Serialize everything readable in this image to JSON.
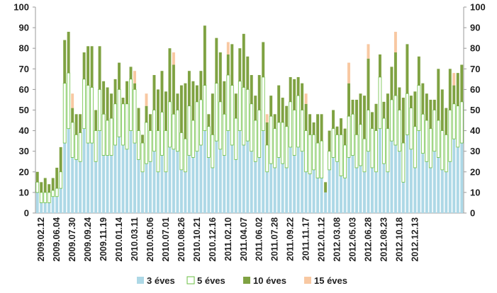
{
  "chart_data": {
    "type": "bar",
    "stacked": true,
    "ylim": [
      0,
      100
    ],
    "y_ticks": [
      0,
      10,
      20,
      30,
      40,
      50,
      60,
      70,
      80,
      90,
      100
    ],
    "grid": false,
    "legend_position": "bottom",
    "x_tick_labels": [
      "2009.02.12",
      "2009.06.04",
      "2009.07.30",
      "2009.09.24",
      "2009.11.19",
      "2010.01.14",
      "2010.03.11",
      "2010.05.06",
      "2010.07.01",
      "2010.08.26",
      "2010.10.21",
      "2010.12.16",
      "2011.02.10",
      "2011.04.07",
      "2011.06.02",
      "2011.07.28",
      "2011.09.22",
      "2011.11.17",
      "2012.01.12",
      "2012.03.08",
      "2012.05.03",
      "2012.06.28",
      "2012.08.23",
      "2012.10.18",
      "2012.12.13"
    ],
    "x_label_every": 4,
    "series": [
      {
        "name": "3 éves",
        "color": "#add8e6",
        "values": [
          10,
          5,
          5,
          5,
          8,
          8,
          12,
          34,
          41,
          27,
          26,
          25,
          41,
          34,
          34,
          25,
          40,
          28,
          28,
          28,
          33,
          37,
          33,
          31,
          40,
          34,
          26,
          20,
          24,
          25,
          30,
          20,
          28,
          20,
          32,
          31,
          30,
          21,
          20,
          28,
          27,
          30,
          33,
          40,
          27,
          22,
          35,
          31,
          28,
          40,
          33,
          26,
          40,
          33,
          35,
          30,
          25,
          27,
          40,
          20,
          24,
          22,
          27,
          24,
          22,
          32,
          28,
          32,
          30,
          20,
          19,
          21,
          17,
          17,
          10,
          21,
          27,
          25,
          18,
          17,
          27,
          28,
          22,
          23,
          20,
          30,
          22,
          20,
          41,
          24,
          20,
          35,
          33,
          30,
          15,
          38,
          31,
          22,
          40,
          29,
          25,
          22,
          30,
          27,
          21,
          20,
          25,
          36,
          32,
          34
        ]
      },
      {
        "name": "5 éves",
        "color": "#ffffff",
        "stroke": "#6abf40",
        "values": [
          5,
          5,
          5,
          5,
          3,
          4,
          8,
          29,
          27,
          17,
          12,
          14,
          24,
          28,
          27,
          15,
          20,
          20,
          17,
          18,
          20,
          23,
          20,
          22,
          25,
          26,
          14,
          14,
          20,
          15,
          20,
          20,
          21,
          20,
          22,
          17,
          20,
          18,
          16,
          24,
          18,
          24,
          22,
          22,
          15,
          16,
          28,
          23,
          20,
          27,
          29,
          20,
          24,
          28,
          25,
          23,
          20,
          23,
          26,
          13,
          23,
          19,
          17,
          20,
          20,
          22,
          22,
          25,
          20,
          20,
          19,
          17,
          17,
          18,
          0,
          9,
          14,
          13,
          20,
          16,
          20,
          20,
          16,
          20,
          16,
          20,
          19,
          20,
          25,
          22,
          21,
          20,
          24,
          20,
          19,
          20,
          20,
          20,
          22,
          19,
          20,
          19,
          20,
          18,
          19,
          18,
          25,
          17,
          20,
          20
        ]
      },
      {
        "name": "10 éves",
        "color": "#7fa242",
        "values": [
          5,
          5,
          7,
          4,
          6,
          10,
          12,
          21,
          20,
          7,
          10,
          9,
          13,
          19,
          20,
          10,
          21,
          16,
          16,
          12,
          12,
          13,
          3,
          11,
          6,
          3,
          11,
          4,
          8,
          8,
          17,
          20,
          20,
          19,
          26,
          24,
          8,
          23,
          27,
          17,
          19,
          8,
          14,
          29,
          6,
          20,
          22,
          24,
          16,
          10,
          20,
          12,
          16,
          26,
          16,
          14,
          12,
          17,
          17,
          11,
          10,
          7,
          18,
          12,
          10,
          12,
          15,
          9,
          13,
          13,
          10,
          6,
          14,
          13,
          5,
          10,
          9,
          4,
          8,
          8,
          16,
          7,
          17,
          15,
          21,
          25,
          8,
          13,
          11,
          8,
          17,
          16,
          21,
          11,
          22,
          24,
          6,
          17,
          14,
          15,
          13,
          14,
          5,
          25,
          20,
          13,
          20,
          9,
          16,
          18
        ]
      },
      {
        "name": "15 éves",
        "color": "#f8c8a2",
        "values": [
          0,
          0,
          0,
          0,
          0,
          0,
          0,
          0,
          0,
          7,
          0,
          0,
          0,
          0,
          0,
          0,
          0,
          0,
          0,
          0,
          0,
          0,
          0,
          0,
          0,
          6,
          0,
          0,
          6,
          0,
          0,
          0,
          0,
          0,
          0,
          6,
          0,
          0,
          0,
          0,
          0,
          0,
          0,
          0,
          0,
          0,
          0,
          0,
          0,
          6,
          0,
          0,
          0,
          0,
          0,
          0,
          0,
          0,
          0,
          4,
          0,
          0,
          0,
          0,
          0,
          0,
          0,
          0,
          0,
          5,
          0,
          0,
          0,
          0,
          0,
          0,
          0,
          0,
          0,
          0,
          10,
          0,
          0,
          0,
          0,
          7,
          0,
          0,
          0,
          0,
          0,
          0,
          10,
          0,
          0,
          0,
          0,
          0,
          0,
          0,
          0,
          0,
          0,
          0,
          0,
          0,
          0,
          6,
          0,
          0
        ]
      }
    ]
  }
}
